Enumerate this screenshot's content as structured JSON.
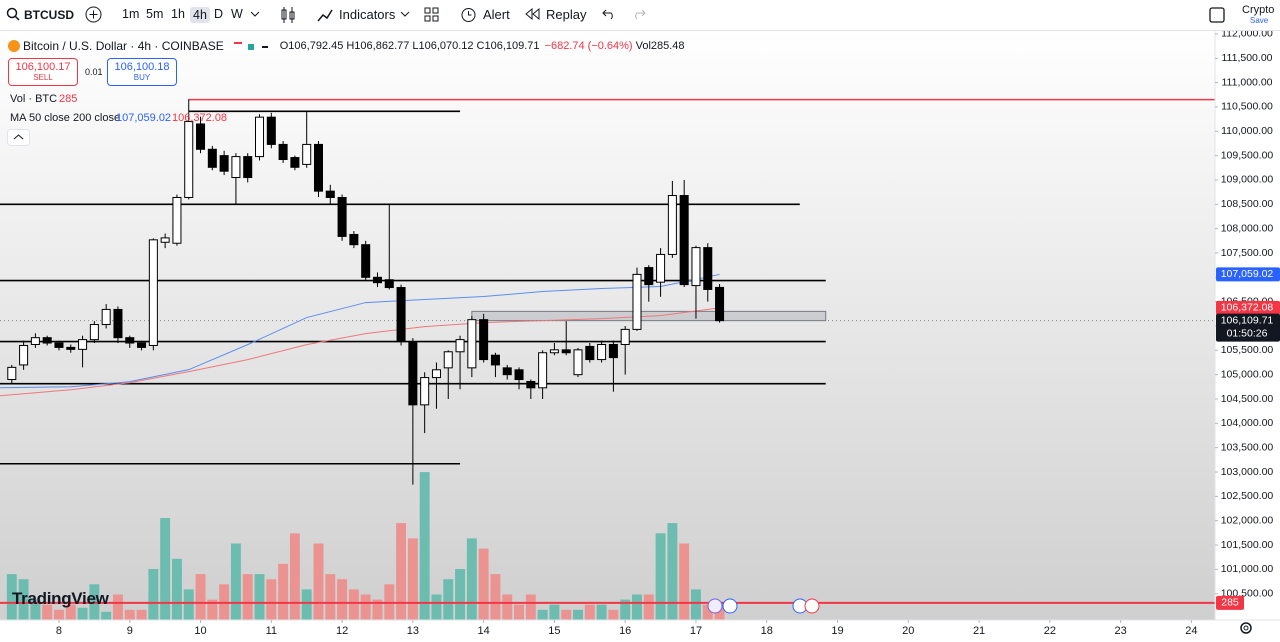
{
  "toolbar": {
    "symbol": "BTCUSD",
    "intervals": [
      "1m",
      "5m",
      "1h",
      "4h",
      "D",
      "W"
    ],
    "indicators": "Indicators",
    "alert": "Alert",
    "replay": "Replay",
    "crypto": "Crypto",
    "save": "Save"
  },
  "legend": {
    "title": "Bitcoin / U.S. Dollar · 4h · COINBASE",
    "ohlc": [
      "O106,792.45",
      "H106,862.77",
      "L106,070.12",
      "C106,109.71",
      "−682.74 (−0.64%)",
      "Vol285.48"
    ],
    "sell_price": "106,100.17",
    "sell": "SELL",
    "spread": "0.01",
    "buy_price": "106,100.18",
    "buy": "BUY",
    "volume_label": "Vol · BTC",
    "volume_value": "285",
    "ma_label": "MA 50 close 200 close",
    "ma_values": [
      "107,059.02",
      "106,372.08"
    ]
  },
  "logo": "TradingView",
  "chart_data": {
    "type": "candlestick",
    "open": [
      104900,
      105200,
      105620,
      105760,
      105650,
      105560,
      105520,
      105720,
      106030,
      106340,
      105760,
      105650,
      105600,
      107720,
      107700,
      108640,
      110150,
      109630,
      109500,
      109050,
      109480,
      109480,
      110290,
      109730,
      109460,
      109320,
      109730,
      108770,
      108640,
      107880,
      107670,
      107000,
      106950,
      106790,
      105680,
      104380,
      104940,
      105140,
      105470,
      105140,
      106130,
      105400,
      105140,
      105100,
      104860,
      104730,
      105450,
      105510,
      105000,
      105580,
      105310,
      105620,
      105620,
      105930,
      107200,
      106900,
      107470,
      108680,
      106830,
      107610,
      106792.45
    ],
    "high": [
      105200,
      105700,
      105850,
      105800,
      105700,
      105620,
      105800,
      106100,
      106450,
      106400,
      105800,
      105700,
      107800,
      107900,
      108700,
      110660,
      110300,
      109700,
      109600,
      109550,
      109550,
      110350,
      110380,
      109800,
      109500,
      110400,
      109800,
      108900,
      108700,
      107950,
      107750,
      107100,
      108500,
      106850,
      105750,
      105050,
      105250,
      105500,
      105800,
      106200,
      106250,
      105450,
      105200,
      105150,
      104900,
      105500,
      105650,
      106100,
      105550,
      105650,
      105700,
      105700,
      106000,
      107200,
      107250,
      107600,
      108980,
      109000,
      107650,
      107700,
      106862.77
    ],
    "low": [
      104800,
      105100,
      105550,
      105600,
      105500,
      105450,
      105150,
      105650,
      105950,
      105650,
      105550,
      105500,
      105500,
      107600,
      107650,
      108600,
      109550,
      109200,
      109100,
      108500,
      108950,
      109400,
      109650,
      109350,
      109200,
      109250,
      108650,
      108500,
      107750,
      107600,
      106950,
      106800,
      106750,
      105600,
      102740,
      103800,
      104300,
      104500,
      104700,
      104950,
      105250,
      104950,
      104900,
      104700,
      104500,
      104500,
      105400,
      105400,
      104950,
      105250,
      105250,
      104650,
      105000,
      105900,
      106500,
      106600,
      107400,
      106800,
      106150,
      106500,
      106070.12
    ],
    "close": [
      105150,
      105600,
      105760,
      105650,
      105560,
      105520,
      105720,
      106030,
      106340,
      105760,
      105650,
      105560,
      107770,
      107810,
      108640,
      110200,
      109630,
      109260,
      109180,
      109480,
      109050,
      110290,
      109730,
      109420,
      109260,
      109730,
      108770,
      108640,
      107840,
      107670,
      107000,
      106890,
      106790,
      105680,
      104380,
      104940,
      105100,
      105470,
      105720,
      106130,
      105310,
      105200,
      105000,
      104900,
      104730,
      105450,
      105510,
      105450,
      105510,
      105310,
      105620,
      105350,
      105930,
      107060,
      106850,
      107470,
      108680,
      106850,
      107610,
      106750,
      106109.71
    ],
    "up_color": "#ffffff",
    "down_color": "#000000",
    "xlim": [
      -1,
      102
    ],
    "xticks": [
      {
        "value": 4,
        "label": "8"
      },
      {
        "value": 10,
        "label": "9"
      },
      {
        "value": 16,
        "label": "10"
      },
      {
        "value": 22,
        "label": "11"
      },
      {
        "value": 28,
        "label": "12"
      },
      {
        "value": 34,
        "label": "13"
      },
      {
        "value": 40,
        "label": "14"
      },
      {
        "value": 46,
        "label": "15"
      },
      {
        "value": 52,
        "label": "16"
      },
      {
        "value": 58,
        "label": "17"
      },
      {
        "value": 64,
        "label": "18"
      },
      {
        "value": 70,
        "label": "19"
      },
      {
        "value": 76,
        "label": "20"
      },
      {
        "value": 82,
        "label": "21"
      },
      {
        "value": 88,
        "label": "22"
      },
      {
        "value": 94,
        "label": "23"
      },
      {
        "value": 100,
        "label": "24"
      }
    ],
    "ylim": [
      99960,
      112060
    ],
    "yticks": [
      {
        "value": 112000,
        "label": "112,000.00"
      },
      {
        "value": 111500,
        "label": "111,500.00"
      },
      {
        "value": 111000,
        "label": "111,000.00"
      },
      {
        "value": 110500,
        "label": "110,500.00"
      },
      {
        "value": 110000,
        "label": "110,000.00"
      },
      {
        "value": 109500,
        "label": "109,500.00"
      },
      {
        "value": 109000,
        "label": "109,000.00"
      },
      {
        "value": 108500,
        "label": "108,500.00"
      },
      {
        "value": 108000,
        "label": "108,000.00"
      },
      {
        "value": 107500,
        "label": "107,500.00"
      },
      {
        "value": 107000,
        "label": "107,000.00"
      },
      {
        "value": 106500,
        "label": "106,500.00"
      },
      {
        "value": 106000,
        "label": "106,000.00"
      },
      {
        "value": 105500,
        "label": "105,500.00"
      },
      {
        "value": 105000,
        "label": "105,000.00"
      },
      {
        "value": 104500,
        "label": "104,500.00"
      },
      {
        "value": 104000,
        "label": "104,000.00"
      },
      {
        "value": 103500,
        "label": "103,500.00"
      },
      {
        "value": 103000,
        "label": "103,000.00"
      },
      {
        "value": 102500,
        "label": "102,500.00"
      },
      {
        "value": 102000,
        "label": "102,000.00"
      },
      {
        "value": 101500,
        "label": "101,500.00"
      },
      {
        "value": 101000,
        "label": "101,000.00"
      },
      {
        "value": 100500,
        "label": "100,500.00"
      }
    ],
    "ma": [
      {
        "color": "#5b8def",
        "x": [
          -1,
          5,
          10,
          15,
          20,
          25,
          30,
          35,
          40,
          45,
          50,
          55,
          60
        ],
        "values": [
          104732,
          104753,
          104856,
          105103,
          105617,
          106173,
          106481,
          106543,
          106605,
          106708,
          106770,
          106811,
          107059.02
        ]
      },
      {
        "color": "#f0787a",
        "x": [
          -1,
          5,
          10,
          15,
          20,
          25,
          30,
          35,
          40,
          45,
          50,
          55,
          60
        ],
        "values": [
          104568,
          104691,
          104835,
          105062,
          105309,
          105617,
          105844,
          105988,
          106070,
          106111,
          106152,
          106214,
          106372.08
        ]
      }
    ],
    "volume": {
      "values": [
        765,
        680,
        340,
        255,
        170,
        255,
        204,
        595,
        136,
        425,
        170,
        170,
        850,
        1700,
        1020,
        510,
        765,
        340,
        595,
        1275,
        765,
        765,
        680,
        935,
        1445,
        510,
        1275,
        765,
        680,
        510,
        425,
        340,
        595,
        1615,
        1360,
        2465,
        425,
        680,
        850,
        1360,
        1190,
        765,
        425,
        255,
        425,
        170,
        255,
        170,
        170,
        255,
        255,
        170,
        340,
        425,
        425,
        1445,
        1615,
        1275,
        510,
        255,
        285
      ],
      "ylim": [
        0,
        4000
      ],
      "up_color": "#6cbcb0",
      "down_color": "#eb9391",
      "line_color": "#f23645"
    },
    "drawings": [
      {
        "price": 110410,
        "x": [
          15,
          38
        ],
        "color": "#000000"
      },
      {
        "price": 110650,
        "x": [
          15,
          102
        ],
        "color": "#f23645"
      },
      {
        "price": 108500,
        "x": [
          -1,
          66.8
        ],
        "color": "#000000"
      },
      {
        "price": 106934,
        "x": [
          -1,
          69
        ],
        "color": "#000000"
      },
      {
        "price": 105680,
        "x": [
          -1,
          69
        ],
        "color": "#000000"
      },
      {
        "price": 104815,
        "x": [
          -1,
          69
        ],
        "color": "#000000"
      },
      {
        "price": 103170,
        "x": [
          -1,
          38
        ],
        "color": "#000000"
      },
      {
        "price": [
          106300,
          106110
        ],
        "x": [
          39,
          69
        ],
        "color": "#787b86"
      }
    ],
    "price_tag": "106,109.71",
    "countdown": "01:50:26"
  }
}
